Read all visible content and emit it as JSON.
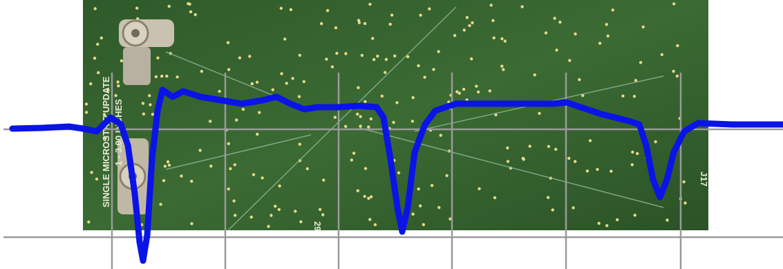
{
  "board": {
    "labels": [
      "SINGLE MICROSTRIP UPDATE",
      "1 - 3.00 INCHES",
      "J17",
      "29"
    ]
  }
}
